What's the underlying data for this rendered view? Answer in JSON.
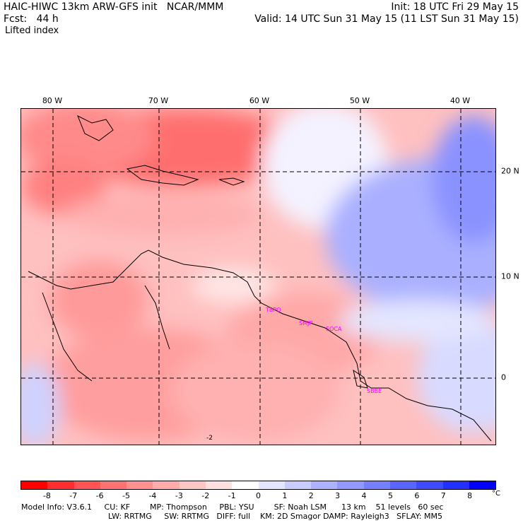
{
  "header": {
    "title": "HAIC-HIWC 13km ARW-GFS init   NCAR/MMM",
    "init": "Init: 18 UTC Fri 29 May 15",
    "fcst": "Fcst:   44 h",
    "valid": "Valid: 14 UTC Sun 31 May 15 (11 LST Sun 31 May 15)",
    "field": "Lifted index"
  },
  "map": {
    "lon_labels": [
      "80 W",
      "70 W",
      "60 W",
      "50 W",
      "40 W"
    ],
    "lat_labels": [
      "20 N",
      "10 N",
      "0"
    ],
    "station_labels": [
      "TBPO",
      "SMJP",
      "SOCA",
      "SBBE"
    ],
    "contour_label": "-2"
  },
  "legend": {
    "ticks": [
      "-8",
      "-7",
      "-6",
      "-5",
      "-4",
      "-3",
      "-2",
      "-1",
      "0",
      "1",
      "2",
      "3",
      "4",
      "5",
      "6",
      "7",
      "8"
    ],
    "unit": "°C",
    "colors": [
      "#ff0000",
      "#ff2f2f",
      "#ff5454",
      "#ff7373",
      "#ff9090",
      "#ffabab",
      "#ffc6c6",
      "#ffe0e0",
      "#ffffff",
      "#e4e6ff",
      "#c8ccff",
      "#adb2ff",
      "#9198ff",
      "#767fff",
      "#5a65ff",
      "#3f4bff",
      "#2331ff",
      "#0000ff"
    ]
  },
  "model_info": {
    "line1": "Model Info: V3.6.1     CU: KF        MP: Thompson     PBL: YSU        SF: Noah LSM      13 km    51 levels   60 sec",
    "line2": "LW: RRTMG     SW: RRTMG   DIFF: full    KM: 2D Smagor DAMP: Rayleigh3   SFLAY: MM5"
  }
}
